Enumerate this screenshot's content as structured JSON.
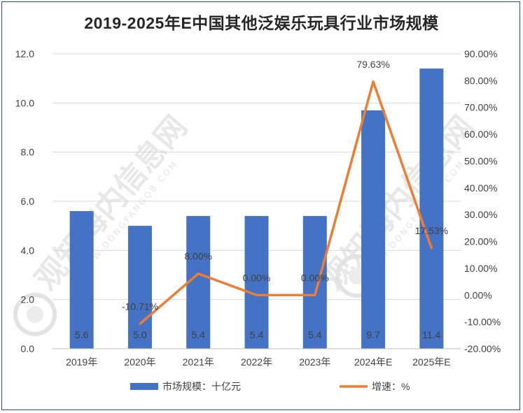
{
  "chart_data": {
    "type": "bar",
    "title": "2019-2025年E中国其他泛娱乐玩具行业市场规模",
    "categories": [
      "2019年",
      "2020年",
      "2021年",
      "2022年",
      "2023年",
      "2024年E",
      "2025年E"
    ],
    "series": [
      {
        "name": "市场规模：十亿元",
        "type": "bar",
        "axis": "left",
        "color": "#4472c4",
        "values": [
          5.6,
          5.0,
          5.4,
          5.4,
          5.4,
          9.7,
          11.4
        ],
        "labels": [
          "5.6",
          "5.0",
          "5.4",
          "5.4",
          "5.4",
          "9.7",
          "11.4"
        ]
      },
      {
        "name": "增速：%",
        "type": "line",
        "axis": "right",
        "color": "#ed7d31",
        "values": [
          null,
          -10.71,
          8.0,
          0.0,
          0.0,
          79.63,
          17.53
        ],
        "labels": [
          "",
          "-10.71%",
          "8.00%",
          "0.00%",
          "0.00%",
          "79.63%",
          "17.53%"
        ]
      }
    ],
    "y_left": {
      "min": 0,
      "max": 12,
      "step": 2,
      "tick_labels": [
        "0.0",
        "2.0",
        "4.0",
        "6.0",
        "8.0",
        "10.0",
        "12.0"
      ]
    },
    "y_right": {
      "min": -20,
      "max": 90,
      "step": 10,
      "tick_labels": [
        "-20.00%",
        "-10.00%",
        "0.00%",
        "10.00%",
        "20.00%",
        "30.00%",
        "40.00%",
        "50.00%",
        "60.00%",
        "70.00%",
        "80.00%",
        "90.00%"
      ]
    },
    "grid": true,
    "legend_position": "bottom"
  },
  "watermark": {
    "text": "观知海内信息网",
    "sub": "WWW.DONGFANGQB.COM"
  }
}
